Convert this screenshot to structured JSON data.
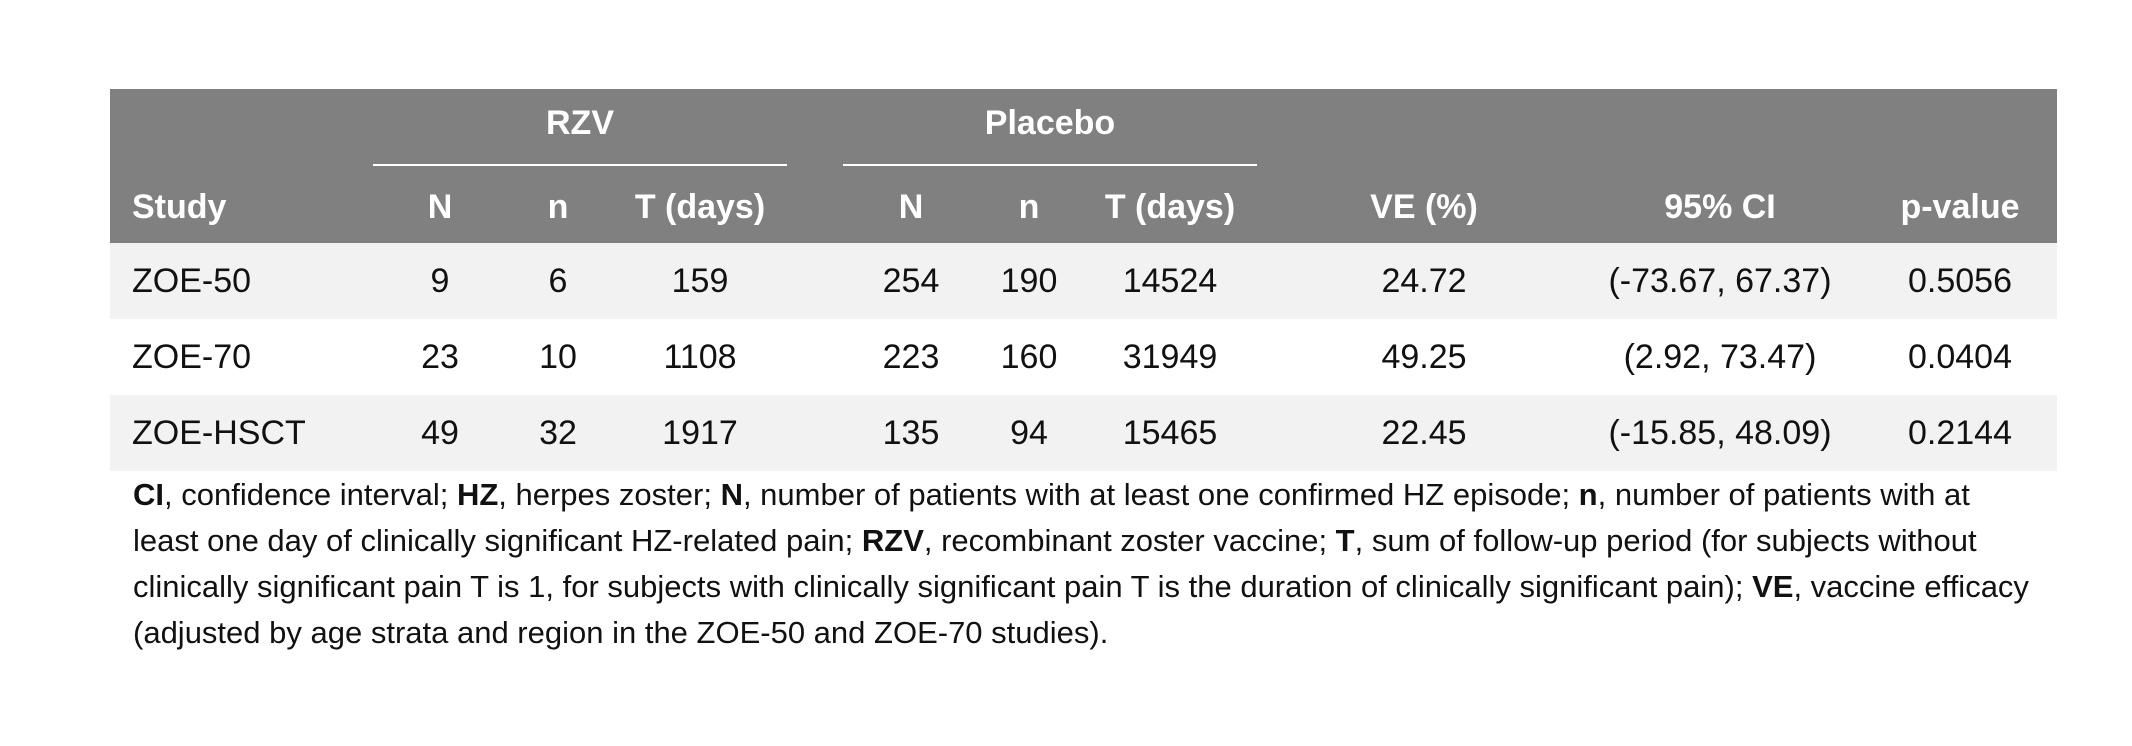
{
  "table": {
    "groups": {
      "rzv": "RZV",
      "placebo": "Placebo"
    },
    "headers": [
      "Study",
      "N",
      "n",
      "T (days)",
      "N",
      "n",
      "T (days)",
      "VE (%)",
      "95% CI",
      "p-value"
    ],
    "rows": [
      [
        "ZOE-50",
        "9",
        "6",
        "159",
        "254",
        "190",
        "14524",
        "24.72",
        "(-73.67, 67.37)",
        "0.5056"
      ],
      [
        "ZOE-70",
        "23",
        "10",
        "1108",
        "223",
        "160",
        "31949",
        "49.25",
        "(2.92, 73.47)",
        "0.0404"
      ],
      [
        "ZOE-HSCT",
        "49",
        "32",
        "1917",
        "135",
        "94",
        "15465",
        "22.45",
        "(-15.85, 48.09)",
        "0.2144"
      ]
    ]
  },
  "footnote": {
    "segments": [
      {
        "b": "CI"
      },
      {
        "t": ", confidence interval; "
      },
      {
        "b": "HZ"
      },
      {
        "t": ", herpes zoster; "
      },
      {
        "b": "N"
      },
      {
        "t": ", number of patients with at least one confirmed HZ episode; "
      },
      {
        "b": "n"
      },
      {
        "t": ", number of patients with at least one day of clinically significant HZ-related pain; "
      },
      {
        "b": "RZV"
      },
      {
        "t": ", recombinant zoster vaccine; "
      },
      {
        "b": "T"
      },
      {
        "t": ", sum of follow-up period (for subjects without clinically significant pain T is 1, for subjects with clinically significant pain T is the duration of clinically significant pain); "
      },
      {
        "b": "VE"
      },
      {
        "t": ", vaccine efficacy (adjusted by age strata and region in the ZOE-50 and ZOE-70 studies)."
      }
    ]
  }
}
